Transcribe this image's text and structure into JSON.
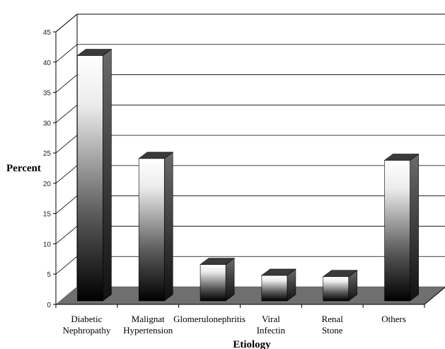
{
  "chart_data": {
    "type": "bar",
    "style": "3d",
    "categories": [
      [
        "Diabetic",
        "Nephropathy"
      ],
      [
        "Malignat",
        "Hypertension"
      ],
      [
        "Glomerulonephritis"
      ],
      [
        "Viral",
        "Infectin"
      ],
      [
        "Renal",
        "Stone"
      ],
      [
        "Others"
      ]
    ],
    "values": [
      40.5,
      23.5,
      6,
      4.2,
      4,
      23.2
    ],
    "xlabel": "Etiology",
    "ylabel": "Percent",
    "ylim": [
      0,
      45
    ],
    "yticks": [
      0,
      5,
      10,
      15,
      20,
      25,
      30,
      35,
      40,
      45
    ],
    "grid": true,
    "legend": "none"
  }
}
